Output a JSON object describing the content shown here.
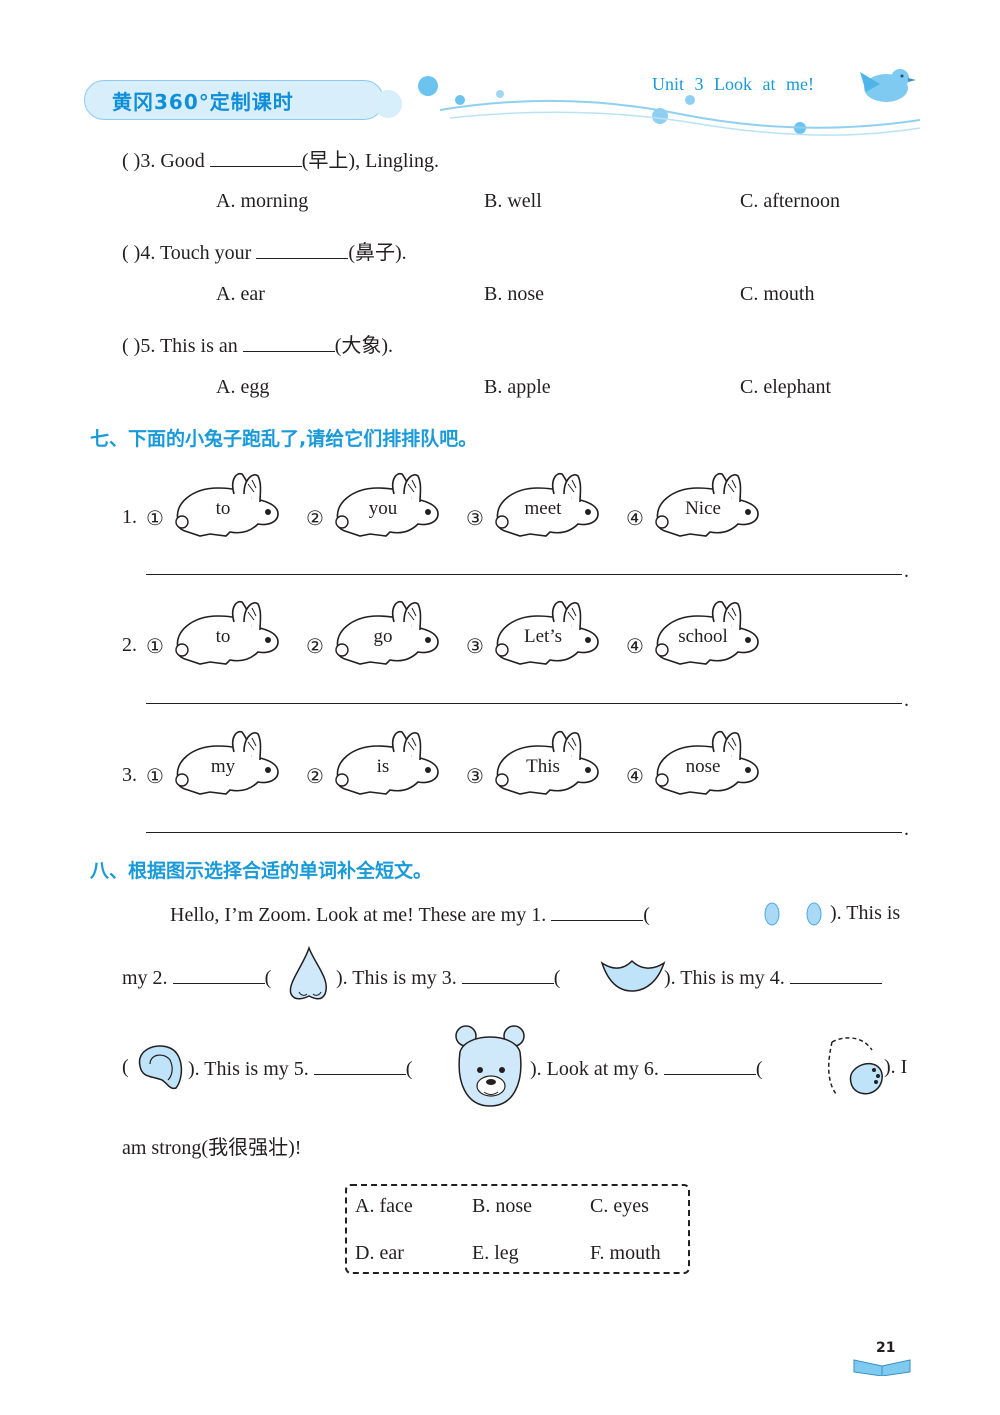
{
  "header": {
    "badge": "黄冈360°定制课时",
    "unit": "Unit 3   Look at me!"
  },
  "questions": [
    {
      "prefix": "(        )3. Good",
      "suffix": "(早上), Lingling.",
      "options": [
        "A. morning",
        "B. well",
        "C. afternoon"
      ]
    },
    {
      "prefix": "(        )4. Touch your",
      "suffix": "(鼻子).",
      "options": [
        "A. ear",
        "B. nose",
        "C. mouth"
      ]
    },
    {
      "prefix": "(        )5. This is an",
      "suffix": "(大象).",
      "options": [
        "A. egg",
        "B. apple",
        "C. elephant"
      ]
    }
  ],
  "section7": {
    "title": "七、下面的小兔子跑乱了,请给它们排排队吧。",
    "rows": [
      {
        "num": "1.",
        "words": [
          "to",
          "you",
          "meet",
          "Nice"
        ]
      },
      {
        "num": "2.",
        "words": [
          "to",
          "go",
          "Let’s",
          "school"
        ]
      },
      {
        "num": "3.",
        "words": [
          "my",
          "is",
          "This",
          "nose"
        ]
      }
    ],
    "markers": [
      "①",
      "②",
      "③",
      "④"
    ],
    "end_mark": "."
  },
  "section8": {
    "title": "八、根据图示选择合适的单词补全短文。",
    "p1a": "Hello, I’m Zoom. Look at me!  These are my 1.",
    "p1b": "). This is",
    "p2a": "my 2.",
    "p2b": "). This is my 3.",
    "p2c": "). This is my 4.",
    "p3a": "). This is my 5.",
    "p3b": "). Look at my 6.",
    "p3c": "). I",
    "p4": "am strong(我很强壮)!",
    "paren": "(",
    "options": [
      "A. face",
      "B. nose",
      "C. eyes",
      "D. ear",
      "E. leg",
      "F. mouth"
    ]
  },
  "page_number": "21"
}
